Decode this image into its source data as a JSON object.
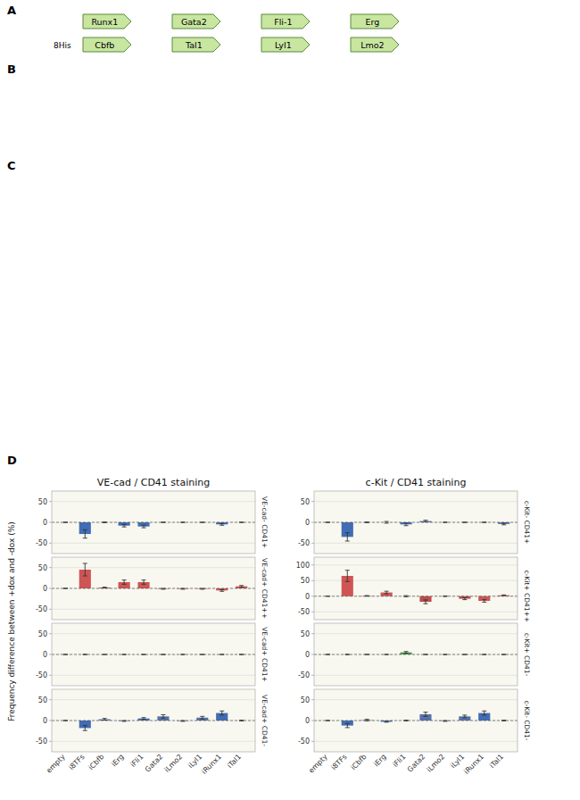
{
  "chart_data": [
    {
      "type": "bar",
      "title": "VE-cad / CD41 staining",
      "ylabel": "Frequency difference between +dox and -dox (%)",
      "annotations": [
        "A",
        "B",
        "C",
        "D",
        "Runx1",
        "Gata2",
        "Fli-1",
        "Erg",
        "8His",
        "Cbfb",
        "Tal1",
        "Lyl1",
        "Lmo2"
      ],
      "categories": [
        "empty",
        "i8TFs",
        "iCbfb",
        "iErg",
        "iFli1",
        "Gata2",
        "iLmo2",
        "iLyl1",
        "iRunx1",
        "iTal1"
      ],
      "values": [
        0,
        -28,
        0,
        -8,
        -10,
        0,
        0,
        0,
        -5,
        0
      ],
      "errors": [
        0.5,
        10,
        1,
        3,
        3,
        0.5,
        0.5,
        0.5,
        2,
        0.5
      ],
      "colors": [
        "#3a5a9c",
        "#2255aa",
        "#3a5a9c",
        "#2255aa",
        "#2255aa",
        "#3a5a9c",
        "#3a5a9c",
        "#3a5a9c",
        "#2255aa",
        "#3a5a9c"
      ],
      "ylim": [
        -75,
        75
      ],
      "yticks": [
        -50,
        0,
        50
      ],
      "grid": true,
      "tick_labels": "y",
      "y2lim": [
        -75,
        75
      ],
      "y2ticks": [
        {
          "value": 0,
          "label": "VE-cad- CD41+"
        }
      ]
    },
    {
      "type": "bar",
      "categories": [
        "empty",
        "i8TFs",
        "iCbfb",
        "iErg",
        "iFli1",
        "Gata2",
        "iLmo2",
        "iLyl1",
        "iRunx1",
        "iTal1"
      ],
      "values": [
        0,
        45,
        2,
        15,
        15,
        -1,
        -1,
        -1,
        -5,
        5
      ],
      "errors": [
        0.5,
        15,
        1,
        5,
        5,
        1,
        1,
        1,
        2,
        2
      ],
      "colors": [
        "#b03030",
        "#c8383a",
        "#b03030",
        "#c8383a",
        "#c8383a",
        "#b03030",
        "#b03030",
        "#b03030",
        "#c8383a",
        "#c8383a"
      ],
      "ylim": [
        -75,
        75
      ],
      "yticks": [
        -50,
        0,
        50
      ],
      "grid": true,
      "tick_labels": "y",
      "y2lim": [
        -75,
        75
      ],
      "y2ticks": [
        {
          "value": 0,
          "label": "VE-cad+ CD41++"
        }
      ]
    },
    {
      "type": "bar",
      "categories": [
        "empty",
        "i8TFs",
        "iCbfb",
        "iErg",
        "iFli1",
        "Gata2",
        "iLmo2",
        "iLyl1",
        "iRunx1",
        "iTal1"
      ],
      "values": [
        0,
        0,
        0,
        0,
        0,
        0,
        0,
        0,
        0,
        0
      ],
      "errors": [
        0.3,
        0.5,
        0.3,
        0.3,
        0.3,
        0.3,
        0.3,
        0.3,
        0.3,
        0.3
      ],
      "colors": [
        "#3a5a9c",
        "#2255aa",
        "#3a5a9c",
        "#2255aa",
        "#2255aa",
        "#3a5a9c",
        "#3a5a9c",
        "#3a5a9c",
        "#2255aa",
        "#3a5a9c"
      ],
      "ylim": [
        -75,
        75
      ],
      "yticks": [
        -50,
        0,
        50
      ],
      "grid": true,
      "tick_labels": "y",
      "y2lim": [
        -75,
        75
      ],
      "y2ticks": [
        {
          "value": 0,
          "label": "VE-cad+ CD41+"
        }
      ]
    },
    {
      "type": "bar",
      "categories": [
        "empty",
        "i8TFs",
        "iCbfb",
        "iErg",
        "iFli1",
        "Gata2",
        "iLmo2",
        "iLyl1",
        "iRunx1",
        "iTal1"
      ],
      "values": [
        0,
        -18,
        3,
        -1,
        5,
        10,
        -1,
        7,
        18,
        0
      ],
      "errors": [
        0.5,
        6,
        2,
        1,
        2,
        4,
        1,
        3,
        5,
        1
      ],
      "colors": [
        "#3a5a9c",
        "#2255aa",
        "#3a5a9c",
        "#2255aa",
        "#2255aa",
        "#3a5a9c",
        "#3a5a9c",
        "#3a5a9c",
        "#2255aa",
        "#3a5a9c"
      ],
      "ylim": [
        -75,
        75
      ],
      "yticks": [
        -50,
        0,
        50
      ],
      "grid": true,
      "y2lim": [
        -75,
        75
      ],
      "y2ticks": [
        {
          "value": 0,
          "label": "VE-cad+ CD41-"
        }
      ]
    },
    {
      "type": "bar",
      "title": "c-Kit / CD41 staining",
      "categories": [
        "empty",
        "i8TFs",
        "iCbfb",
        "iErg",
        "iFli1",
        "Gata2",
        "iLmo2",
        "iLyl1",
        "iRunx1",
        "iTal1"
      ],
      "values": [
        0,
        -35,
        0,
        0,
        -5,
        3,
        0,
        0,
        0,
        -4
      ],
      "errors": [
        0.5,
        10,
        1,
        2,
        3,
        2,
        0.5,
        0.5,
        0.5,
        2
      ],
      "colors": [
        "#3a5a9c",
        "#2255aa",
        "#3a5a9c",
        "#2255aa",
        "#2255aa",
        "#3a5a9c",
        "#3a5a9c",
        "#3a5a9c",
        "#2255aa",
        "#3a5a9c"
      ],
      "ylim": [
        -75,
        75
      ],
      "yticks": [
        -50,
        0,
        50
      ],
      "grid": true,
      "tick_labels": "y",
      "y2lim": [
        -75,
        75
      ],
      "y2ticks": [
        {
          "value": 0,
          "label": "c-Kit- CD41+"
        }
      ]
    },
    {
      "type": "bar",
      "categories": [
        "empty",
        "i8TFs",
        "iCbfb",
        "iErg",
        "iFli1",
        "Gata2",
        "iLmo2",
        "iLyl1",
        "iRunx1",
        "iTal1"
      ],
      "values": [
        0,
        65,
        1,
        12,
        0,
        -18,
        0,
        -8,
        -15,
        3
      ],
      "errors": [
        0.5,
        18,
        1,
        4,
        2,
        6,
        1,
        3,
        4,
        1
      ],
      "colors": [
        "#b03030",
        "#c8383a",
        "#b03030",
        "#c8383a",
        "#c8383a",
        "#b03030",
        "#b03030",
        "#b03030",
        "#c8383a",
        "#c8383a"
      ],
      "ylim": [
        -75,
        125
      ],
      "yticks": [
        -50,
        0,
        50,
        100
      ],
      "grid": true,
      "tick_labels": "y",
      "y2lim": [
        -75,
        125
      ],
      "y2ticks": [
        {
          "value": 0,
          "label": "c-Kit+ CD41++"
        }
      ]
    },
    {
      "type": "bar",
      "categories": [
        "empty",
        "i8TFs",
        "iCbfb",
        "iErg",
        "iFli1",
        "Gata2",
        "iLmo2",
        "iLyl1",
        "iRunx1",
        "iTal1"
      ],
      "values": [
        0,
        0,
        0,
        0,
        5,
        0,
        0,
        0,
        0,
        0
      ],
      "errors": [
        0.3,
        0.5,
        0.3,
        0.3,
        2,
        0.3,
        0.3,
        0.3,
        0.3,
        0.3
      ],
      "colors": [
        "#3a9c3a",
        "#2a8a2a",
        "#3a9c3a",
        "#2a8a2a",
        "#2a8a2a",
        "#3a9c3a",
        "#3a9c3a",
        "#3a9c3a",
        "#2a8a2a",
        "#3a9c3a"
      ],
      "ylim": [
        -75,
        75
      ],
      "yticks": [
        -50,
        0,
        50
      ],
      "grid": true,
      "tick_labels": "y",
      "y2lim": [
        -75,
        75
      ],
      "y2ticks": [
        {
          "value": 0,
          "label": "c-Kit+ CD41-"
        }
      ]
    },
    {
      "type": "bar",
      "categories": [
        "empty",
        "i8TFs",
        "iCbfb",
        "iErg",
        "iFli1",
        "Gata2",
        "iLmo2",
        "iLyl1",
        "iRunx1",
        "iTal1"
      ],
      "values": [
        0,
        -12,
        1,
        -3,
        0,
        15,
        -1,
        10,
        18,
        0
      ],
      "errors": [
        0.5,
        5,
        2,
        1,
        1,
        5,
        1,
        3,
        5,
        1
      ],
      "colors": [
        "#3a5a9c",
        "#2255aa",
        "#3a5a9c",
        "#2255aa",
        "#2255aa",
        "#3a5a9c",
        "#3a5a9c",
        "#3a5a9c",
        "#2255aa",
        "#3a5a9c"
      ],
      "ylim": [
        -75,
        75
      ],
      "yticks": [
        -50,
        0,
        50
      ],
      "grid": true,
      "y2lim": [
        -75,
        75
      ],
      "y2ticks": [
        {
          "value": 0,
          "label": "c-Kit- CD41-"
        }
      ]
    }
  ]
}
